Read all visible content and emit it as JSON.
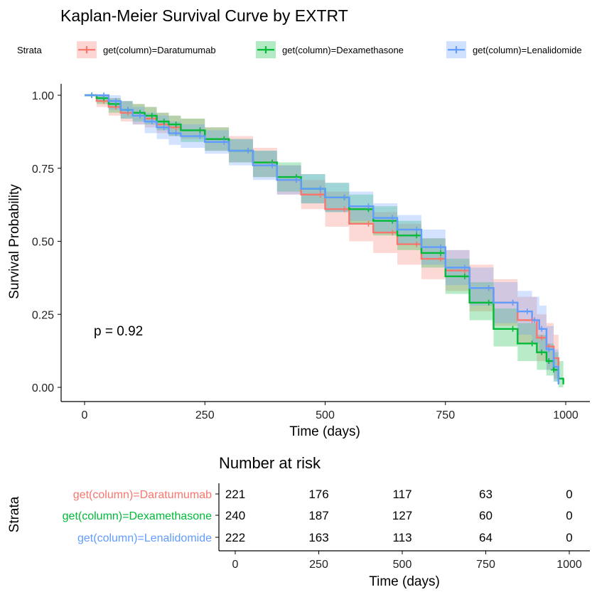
{
  "chart_data": {
    "type": "line",
    "title": "Kaplan-Meier Survival Curve by EXTRT",
    "xlabel": "Time (days)",
    "ylabel": "Survival Probability",
    "xlim": [
      0,
      1000
    ],
    "ylim": [
      0,
      1
    ],
    "x_ticks": [
      "0",
      "250",
      "500",
      "750",
      "1000"
    ],
    "y_ticks": [
      "0.00",
      "0.25",
      "0.50",
      "0.75",
      "1.00"
    ],
    "grid": false,
    "legend_title": "Strata",
    "legend_position": "top",
    "p_value_text": "p = 0.92",
    "series": [
      {
        "name": "get(column)=Daratumumab",
        "color": "#F8766D",
        "x": [
          0,
          25,
          50,
          75,
          100,
          125,
          150,
          175,
          200,
          250,
          300,
          350,
          400,
          450,
          500,
          550,
          600,
          650,
          700,
          750,
          800,
          850,
          900,
          940,
          960,
          975,
          985
        ],
        "y": [
          1.0,
          0.98,
          0.96,
          0.94,
          0.93,
          0.92,
          0.9,
          0.89,
          0.88,
          0.85,
          0.81,
          0.77,
          0.71,
          0.66,
          0.61,
          0.56,
          0.53,
          0.49,
          0.44,
          0.4,
          0.34,
          0.29,
          0.23,
          0.17,
          0.14,
          0.1,
          0.02
        ],
        "lower": [
          1.0,
          0.96,
          0.93,
          0.91,
          0.9,
          0.89,
          0.87,
          0.86,
          0.85,
          0.81,
          0.77,
          0.72,
          0.66,
          0.61,
          0.55,
          0.5,
          0.46,
          0.42,
          0.37,
          0.33,
          0.26,
          0.21,
          0.15,
          0.09,
          0.06,
          0.03,
          0.0
        ],
        "upper": [
          1.0,
          1.0,
          0.99,
          0.98,
          0.97,
          0.96,
          0.94,
          0.93,
          0.92,
          0.89,
          0.86,
          0.82,
          0.76,
          0.71,
          0.67,
          0.62,
          0.6,
          0.56,
          0.51,
          0.47,
          0.42,
          0.37,
          0.31,
          0.25,
          0.22,
          0.18,
          0.08
        ]
      },
      {
        "name": "get(column)=Dexamethasone",
        "color": "#00BA38",
        "x": [
          0,
          25,
          50,
          75,
          100,
          125,
          150,
          175,
          200,
          250,
          300,
          350,
          400,
          450,
          500,
          550,
          600,
          650,
          700,
          750,
          800,
          850,
          900,
          940,
          960,
          975,
          985,
          995
        ],
        "y": [
          1.0,
          0.99,
          0.97,
          0.95,
          0.94,
          0.93,
          0.91,
          0.9,
          0.88,
          0.85,
          0.81,
          0.77,
          0.72,
          0.68,
          0.65,
          0.61,
          0.57,
          0.52,
          0.46,
          0.38,
          0.29,
          0.2,
          0.15,
          0.12,
          0.09,
          0.06,
          0.03,
          0.01
        ],
        "lower": [
          1.0,
          0.97,
          0.94,
          0.92,
          0.91,
          0.9,
          0.88,
          0.86,
          0.84,
          0.81,
          0.77,
          0.72,
          0.67,
          0.63,
          0.6,
          0.56,
          0.52,
          0.47,
          0.41,
          0.32,
          0.23,
          0.14,
          0.09,
          0.06,
          0.04,
          0.02,
          0.0,
          0.0
        ],
        "upper": [
          1.0,
          1.0,
          0.99,
          0.98,
          0.97,
          0.96,
          0.94,
          0.93,
          0.92,
          0.89,
          0.85,
          0.81,
          0.77,
          0.73,
          0.7,
          0.66,
          0.62,
          0.57,
          0.51,
          0.44,
          0.36,
          0.27,
          0.22,
          0.18,
          0.15,
          0.12,
          0.09,
          0.06
        ]
      },
      {
        "name": "get(column)=Lenalidomide",
        "color": "#619CFF",
        "x": [
          0,
          25,
          50,
          75,
          100,
          125,
          150,
          175,
          200,
          250,
          300,
          350,
          400,
          450,
          500,
          550,
          600,
          650,
          700,
          750,
          800,
          850,
          900,
          930,
          945,
          960,
          975,
          985
        ],
        "y": [
          1.0,
          1.0,
          0.98,
          0.95,
          0.93,
          0.91,
          0.89,
          0.87,
          0.86,
          0.84,
          0.81,
          0.76,
          0.71,
          0.68,
          0.65,
          0.62,
          0.58,
          0.54,
          0.48,
          0.41,
          0.34,
          0.29,
          0.26,
          0.23,
          0.2,
          0.13,
          0.07,
          0.01
        ],
        "lower": [
          1.0,
          0.98,
          0.95,
          0.92,
          0.9,
          0.87,
          0.85,
          0.83,
          0.82,
          0.8,
          0.76,
          0.71,
          0.66,
          0.63,
          0.6,
          0.57,
          0.53,
          0.49,
          0.42,
          0.35,
          0.28,
          0.22,
          0.18,
          0.15,
          0.12,
          0.06,
          0.02,
          0.0
        ],
        "upper": [
          1.0,
          1.0,
          1.0,
          0.98,
          0.96,
          0.94,
          0.93,
          0.91,
          0.9,
          0.88,
          0.85,
          0.81,
          0.76,
          0.73,
          0.7,
          0.67,
          0.63,
          0.59,
          0.54,
          0.47,
          0.41,
          0.36,
          0.33,
          0.31,
          0.28,
          0.21,
          0.13,
          0.06
        ]
      }
    ],
    "risk_table": {
      "title": "Number at risk",
      "ylabel": "Strata",
      "xlabel": "Time (days)",
      "times": [
        0,
        250,
        500,
        750,
        1000
      ],
      "tick_labels": [
        "0",
        "250",
        "500",
        "750",
        "1000"
      ],
      "rows": [
        {
          "label": "get(column)=Daratumumab",
          "color": "#F8766D",
          "values": [
            "221",
            "176",
            "117",
            "63",
            "0"
          ]
        },
        {
          "label": "get(column)=Dexamethasone",
          "color": "#00BA38",
          "values": [
            "240",
            "187",
            "127",
            "60",
            "0"
          ]
        },
        {
          "label": "get(column)=Lenalidomide",
          "color": "#619CFF",
          "values": [
            "222",
            "163",
            "113",
            "64",
            "0"
          ]
        }
      ]
    }
  }
}
